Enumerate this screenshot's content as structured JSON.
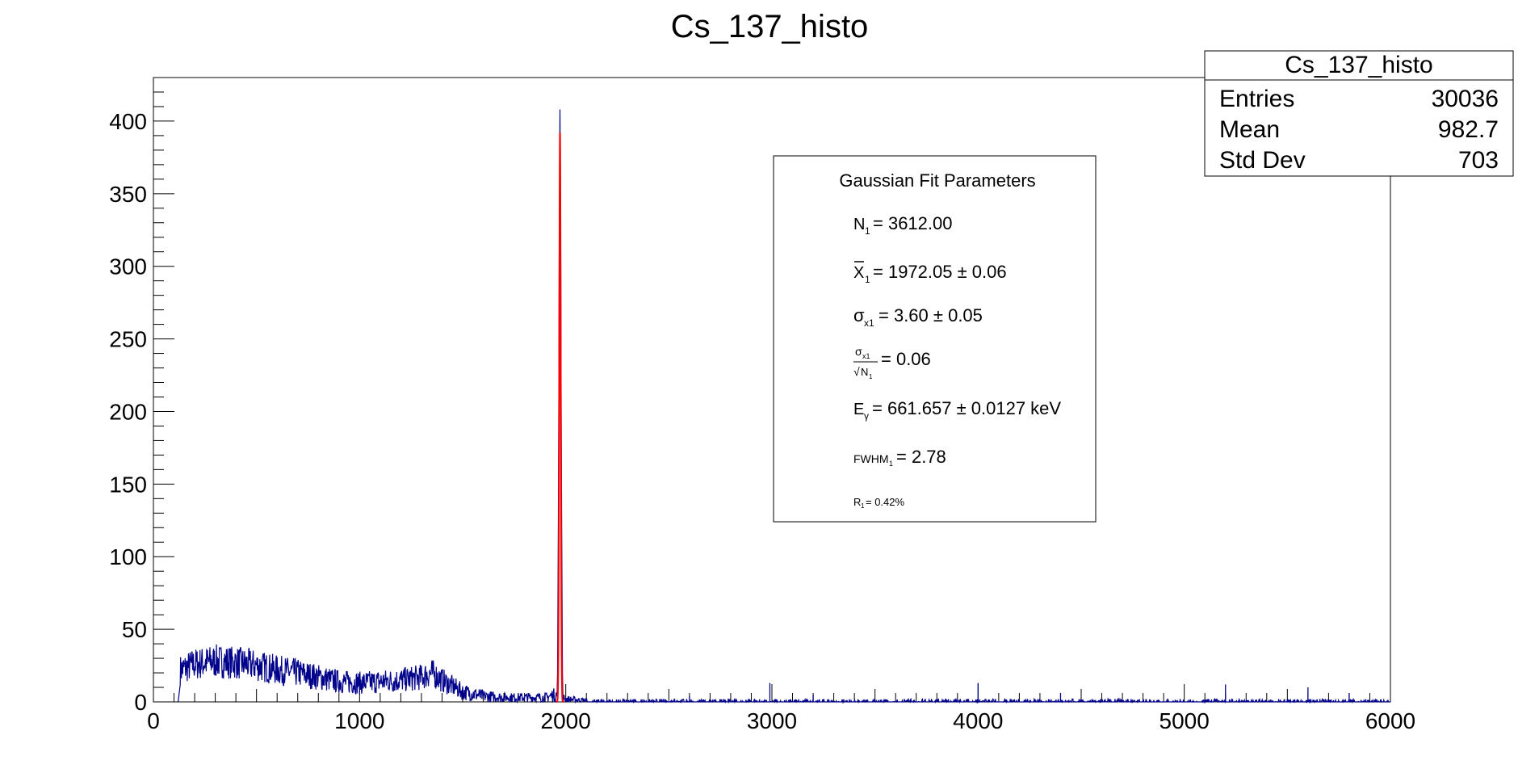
{
  "chart_data": {
    "type": "histogram",
    "title": "Cs_137_histo",
    "xlabel": "",
    "ylabel": "",
    "xlim": [
      0,
      6000
    ],
    "ylim": [
      0,
      430
    ],
    "grid": false,
    "x_ticks": [
      "0",
      "1000",
      "2000",
      "3000",
      "4000",
      "5000",
      "6000"
    ],
    "y_ticks": [
      "0",
      "50",
      "100",
      "150",
      "200",
      "250",
      "300",
      "350",
      "400"
    ],
    "histogram_color": "#00008b",
    "fit_color": "#ff0000",
    "histogram_envelope": [
      {
        "x": 120,
        "y": 0
      },
      {
        "x": 130,
        "y": 22
      },
      {
        "x": 200,
        "y": 26
      },
      {
        "x": 300,
        "y": 28
      },
      {
        "x": 400,
        "y": 27
      },
      {
        "x": 500,
        "y": 25
      },
      {
        "x": 600,
        "y": 22
      },
      {
        "x": 700,
        "y": 20
      },
      {
        "x": 800,
        "y": 17
      },
      {
        "x": 900,
        "y": 14
      },
      {
        "x": 1000,
        "y": 13
      },
      {
        "x": 1100,
        "y": 14
      },
      {
        "x": 1200,
        "y": 15
      },
      {
        "x": 1300,
        "y": 17
      },
      {
        "x": 1350,
        "y": 20
      },
      {
        "x": 1400,
        "y": 15
      },
      {
        "x": 1450,
        "y": 11
      },
      {
        "x": 1500,
        "y": 7
      },
      {
        "x": 1600,
        "y": 4
      },
      {
        "x": 1700,
        "y": 3
      },
      {
        "x": 1800,
        "y": 3
      },
      {
        "x": 1900,
        "y": 3
      },
      {
        "x": 1950,
        "y": 5
      },
      {
        "x": 2000,
        "y": 2
      },
      {
        "x": 2100,
        "y": 1
      },
      {
        "x": 2500,
        "y": 1
      },
      {
        "x": 3000,
        "y": 1
      },
      {
        "x": 4000,
        "y": 1
      },
      {
        "x": 5000,
        "y": 0.5
      },
      {
        "x": 6000,
        "y": 0
      }
    ],
    "histogram_peak": [
      {
        "x": 1960,
        "y": 20
      },
      {
        "x": 1965,
        "y": 150
      },
      {
        "x": 1968,
        "y": 300
      },
      {
        "x": 1972,
        "y": 408
      },
      {
        "x": 1976,
        "y": 300
      },
      {
        "x": 1979,
        "y": 150
      },
      {
        "x": 1984,
        "y": 20
      }
    ],
    "histogram_spikes": [
      {
        "x": 2990,
        "y": 13
      },
      {
        "x": 4000,
        "y": 13
      },
      {
        "x": 4400,
        "y": 6
      },
      {
        "x": 5200,
        "y": 12
      },
      {
        "x": 5600,
        "y": 10
      },
      {
        "x": 5800,
        "y": 6
      },
      {
        "x": 2600,
        "y": 4
      },
      {
        "x": 3200,
        "y": 5
      }
    ],
    "fit": {
      "mean": 1972.05,
      "sigma": 3.6,
      "amplitude": 392
    },
    "stats_box": {
      "title": "Cs_137_histo",
      "rows": [
        {
          "label": "Entries",
          "value": "30036"
        },
        {
          "label": "Mean",
          "value": "982.7"
        },
        {
          "label": "Std Dev",
          "value": "703"
        }
      ]
    },
    "fit_box": {
      "title": "Gaussian Fit Parameters",
      "n_value": "= 3612.00",
      "mean_value": "= 1972.05 ± 0.06",
      "sigma_value": "= 3.60 ± 0.05",
      "ratio_value": "= 0.06",
      "energy_value": "= 661.657 ± 0.0127  keV",
      "fwhm_value": "= 2.78",
      "resolution_value": "= 0.42%",
      "sym_N": "N",
      "sym_X": "X",
      "sym_sigma": "σ",
      "sym_sqrt": "√",
      "sym_E": "E",
      "sym_FWHM": "FWHM",
      "sym_R": "R",
      "sub_1": "1",
      "sub_x1": "x1",
      "sub_gamma": "γ"
    }
  }
}
